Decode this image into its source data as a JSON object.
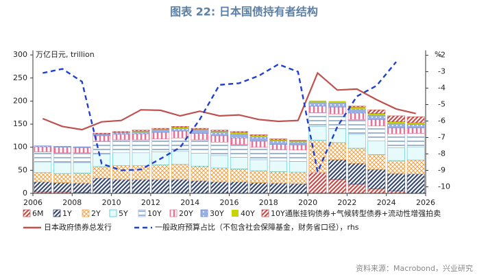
{
  "chart_data": {
    "type": "bar",
    "title": "图表 22: 日本国债持有者结构",
    "y_label": "万亿日元, trillion",
    "y2_label": "%",
    "source": "资料来源：Macrobond，兴业研究",
    "x": [
      2006,
      2007,
      2008,
      2009,
      2010,
      2011,
      2012,
      2013,
      2014,
      2015,
      2016,
      2017,
      2018,
      2019,
      2020,
      2021,
      2022,
      2023,
      2024,
      2025
    ],
    "xlim": [
      2006,
      2026
    ],
    "xticks": [
      2006,
      2008,
      2010,
      2012,
      2014,
      2016,
      2018,
      2020,
      2022,
      2024,
      2026
    ],
    "ylim": [
      0,
      310
    ],
    "yticks": [
      0,
      50,
      100,
      150,
      200,
      250,
      300
    ],
    "y2lim": [
      -10.4,
      -1.7
    ],
    "y2ticks": [
      -2,
      -3,
      -4,
      -5,
      -6,
      -7,
      -8,
      -9,
      -10
    ],
    "series": [
      {
        "name": "6M",
        "color": "#c0504d",
        "hatch": "diag",
        "values": [
          3,
          3,
          2,
          0,
          0,
          0,
          0,
          0,
          0,
          0,
          0,
          0,
          0,
          0,
          45,
          30,
          20,
          10,
          5,
          0
        ]
      },
      {
        "name": "1Y",
        "color": "#3b4a6b",
        "hatch": "diag",
        "values": [
          22,
          20,
          20,
          33,
          30,
          30,
          30,
          30,
          27,
          25,
          25,
          23,
          22,
          21,
          0,
          43,
          45,
          42,
          38,
          42
        ]
      },
      {
        "name": "2Y",
        "color": "#f0a044",
        "hatch": "cross",
        "values": [
          20,
          20,
          22,
          25,
          30,
          30,
          32,
          33,
          32,
          30,
          28,
          26,
          25,
          25,
          70,
          37,
          33,
          32,
          28,
          30
        ]
      },
      {
        "name": "5Y",
        "color": "#3fc8d4",
        "hatch": "frame",
        "values": [
          23,
          23,
          22,
          27,
          28,
          28,
          28,
          28,
          28,
          27,
          25,
          24,
          23,
          23,
          30,
          30,
          30,
          30,
          28,
          28
        ]
      },
      {
        "name": "10Y",
        "color": "#9ab7d8",
        "hatch": "hline",
        "values": [
          22,
          22,
          22,
          28,
          28,
          28,
          28,
          29,
          29,
          29,
          28,
          27,
          25,
          25,
          30,
          32,
          32,
          32,
          30,
          30
        ]
      },
      {
        "name": "20Y",
        "color": "#ee6f92",
        "hatch": "vline",
        "values": [
          11,
          12,
          11,
          12,
          12,
          13,
          14,
          15,
          14,
          14,
          14,
          13,
          11,
          11,
          14,
          15,
          14,
          14,
          13,
          12
        ]
      },
      {
        "name": "30Y",
        "color": "#6f8fd8",
        "hatch": "dots",
        "values": [
          2,
          2,
          2,
          3,
          3,
          4,
          5,
          6,
          7,
          8,
          9,
          9,
          8,
          7,
          9,
          9,
          9,
          9,
          9,
          8
        ]
      },
      {
        "name": "40Y",
        "color": "#c8d400",
        "hatch": "solid",
        "values": [
          0,
          0,
          0,
          0.5,
          1,
          2,
          2,
          2,
          2,
          2,
          3,
          3,
          2,
          2,
          3,
          4,
          4,
          4,
          4,
          3
        ]
      },
      {
        "name": "10Y通胀挂钩债券+气候转型债券+流动性增强拍卖",
        "color": "#c0504d",
        "hatch": "diag",
        "values": [
          0,
          0,
          0,
          2,
          2,
          2,
          2,
          2,
          2,
          2,
          2,
          2,
          2,
          1,
          0,
          0,
          2,
          8,
          13,
          13
        ]
      }
    ],
    "lines": [
      {
        "name": "日本政府债券总发行",
        "color": "#c0504d",
        "dash": false,
        "axis": "y",
        "values": [
          162,
          145,
          138,
          155,
          158,
          181,
          180,
          168,
          178,
          168,
          170,
          160,
          156,
          158,
          261,
          224,
          226,
          203,
          183,
          173
        ]
      },
      {
        "name": "一般政府预算占比（不包含社会保障基金，财务省口径），rhs",
        "color": "#1f3fd0",
        "dash": true,
        "axis": "y2",
        "values": [
          -3.08,
          -2.83,
          -3.6,
          -8.6,
          -9.0,
          -8.95,
          -8.3,
          -7.6,
          -5.9,
          -3.8,
          -3.7,
          -3.25,
          -2.55,
          -3.0,
          -9.1,
          -6.35,
          -4.5,
          -3.85,
          -2.4,
          null
        ]
      }
    ]
  }
}
